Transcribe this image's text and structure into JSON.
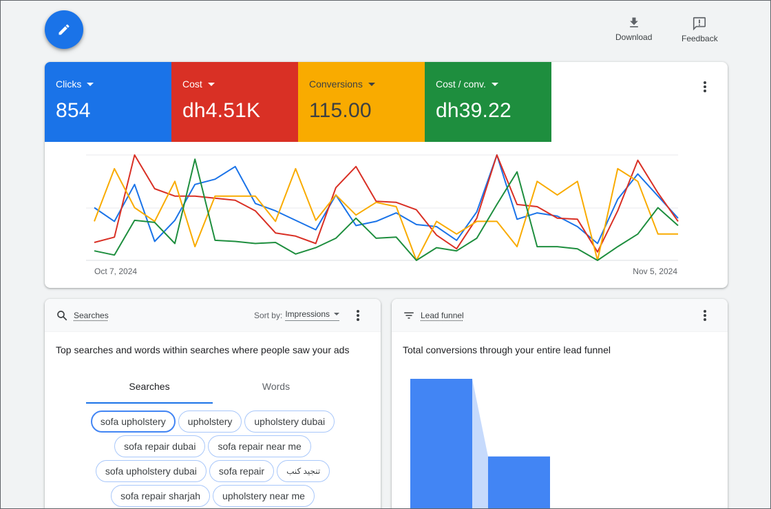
{
  "toolbar": {
    "download_label": "Download",
    "feedback_label": "Feedback"
  },
  "metrics": [
    {
      "label": "Clicks",
      "value": "854",
      "color": "#1a73e8"
    },
    {
      "label": "Cost",
      "value": "dh4.51K",
      "color": "#d93025"
    },
    {
      "label": "Conversions",
      "value": "115.00",
      "color": "#f9ab00"
    },
    {
      "label": "Cost / conv.",
      "value": "dh39.22",
      "color": "#1e8e3e"
    }
  ],
  "chart_data": {
    "type": "line",
    "x_start_label": "Oct 7, 2024",
    "x_end_label": "Nov 5, 2024",
    "grid": true,
    "series": [
      {
        "name": "Clicks",
        "color": "#1a73e8",
        "values": [
          0.5,
          0.37,
          0.72,
          0.18,
          0.38,
          0.72,
          0.77,
          0.89,
          0.54,
          0.47,
          0.38,
          0.29,
          0.62,
          0.33,
          0.37,
          0.45,
          0.34,
          0.32,
          0.19,
          0.46,
          1.0,
          0.39,
          0.45,
          0.42,
          0.32,
          0.16,
          0.58,
          0.82,
          0.61,
          0.4
        ]
      },
      {
        "name": "Cost",
        "color": "#d93025",
        "values": [
          0.17,
          0.22,
          1.0,
          0.68,
          0.61,
          0.61,
          0.59,
          0.57,
          0.47,
          0.26,
          0.23,
          0.16,
          0.69,
          0.89,
          0.56,
          0.55,
          0.48,
          0.24,
          0.11,
          0.4,
          1.0,
          0.53,
          0.51,
          0.4,
          0.39,
          0.08,
          0.47,
          0.95,
          0.64,
          0.37
        ]
      },
      {
        "name": "Conversions",
        "color": "#f9ab00",
        "values": [
          0.37,
          0.87,
          0.5,
          0.37,
          0.75,
          0.13,
          0.61,
          0.61,
          0.61,
          0.37,
          0.87,
          0.38,
          0.62,
          0.43,
          0.55,
          0.51,
          0.0,
          0.37,
          0.25,
          0.37,
          0.37,
          0.13,
          0.75,
          0.62,
          0.75,
          0.0,
          0.87,
          0.75,
          0.25,
          0.25
        ]
      },
      {
        "name": "Cost / conv.",
        "color": "#1e8e3e",
        "values": [
          0.09,
          0.05,
          0.38,
          0.36,
          0.16,
          0.96,
          0.19,
          0.18,
          0.16,
          0.17,
          0.06,
          0.12,
          0.21,
          0.4,
          0.21,
          0.22,
          0.0,
          0.12,
          0.09,
          0.21,
          0.53,
          0.84,
          0.13,
          0.13,
          0.11,
          0.0,
          0.13,
          0.25,
          0.5,
          0.33
        ]
      }
    ]
  },
  "searches_card": {
    "title": "Searches",
    "sort_label": "Sort by:",
    "sort_value": "Impressions",
    "description": "Top searches and words within searches where people saw your ads",
    "tab_searches": "Searches",
    "tab_words": "Words",
    "chips": [
      "sofa upholstery",
      "upholstery",
      "upholstery dubai",
      "sofa repair dubai",
      "sofa repair near me",
      "sofa upholstery dubai",
      "sofa repair",
      "تنجيد كنب",
      "sofa repair sharjah",
      "upholstery near me"
    ]
  },
  "funnel_card": {
    "title": "Lead funnel",
    "description": "Total conversions through your entire lead funnel",
    "bars": [
      1.0,
      0.5
    ]
  }
}
